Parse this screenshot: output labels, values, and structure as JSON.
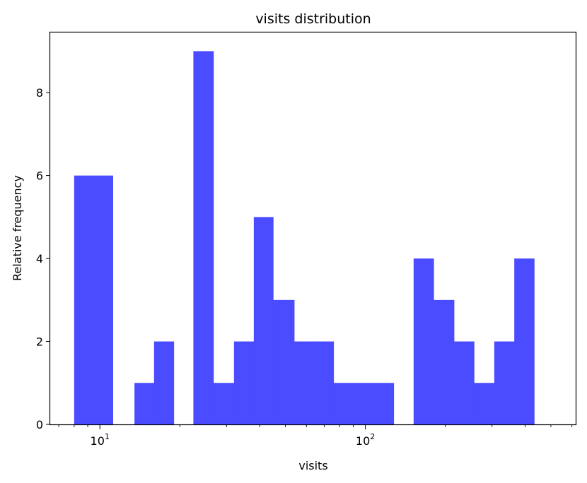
{
  "chart_data": {
    "type": "bar",
    "title": "visits distribution",
    "xlabel": "visits",
    "ylabel": "Relative frequency",
    "xscale": "log",
    "xlim": [
      6.5,
      620
    ],
    "ylim": [
      0,
      9.45
    ],
    "yticks": [
      0,
      2,
      4,
      6,
      8
    ],
    "xticks_major": [
      {
        "value": 10,
        "base": "10",
        "exp": "1"
      },
      {
        "value": 100,
        "base": "10",
        "exp": "2"
      }
    ],
    "bar_color": "#4b4bff",
    "grid": false,
    "legend": "none",
    "bins": [
      {
        "x0": 8.0,
        "x1": 9.4,
        "value": 6
      },
      {
        "x0": 9.4,
        "x1": 11.2,
        "value": 6
      },
      {
        "x0": 11.2,
        "x1": 13.5,
        "value": 0
      },
      {
        "x0": 13.5,
        "x1": 16.0,
        "value": 1
      },
      {
        "x0": 16.0,
        "x1": 19.0,
        "value": 2
      },
      {
        "x0": 19.0,
        "x1": 22.5,
        "value": 0
      },
      {
        "x0": 22.5,
        "x1": 26.8,
        "value": 9
      },
      {
        "x0": 26.8,
        "x1": 32.0,
        "value": 1
      },
      {
        "x0": 32.0,
        "x1": 38.0,
        "value": 2
      },
      {
        "x0": 38.0,
        "x1": 45.0,
        "value": 5
      },
      {
        "x0": 45.0,
        "x1": 54.0,
        "value": 3
      },
      {
        "x0": 54.0,
        "x1": 64.0,
        "value": 2
      },
      {
        "x0": 64.0,
        "x1": 76.0,
        "value": 2
      },
      {
        "x0": 76.0,
        "x1": 90.0,
        "value": 1
      },
      {
        "x0": 90.0,
        "x1": 107.0,
        "value": 1
      },
      {
        "x0": 107.0,
        "x1": 128.0,
        "value": 1
      },
      {
        "x0": 128.0,
        "x1": 152.0,
        "value": 0
      },
      {
        "x0": 152.0,
        "x1": 181.0,
        "value": 4
      },
      {
        "x0": 181.0,
        "x1": 216.0,
        "value": 3
      },
      {
        "x0": 216.0,
        "x1": 257.0,
        "value": 2
      },
      {
        "x0": 257.0,
        "x1": 306.0,
        "value": 1
      },
      {
        "x0": 306.0,
        "x1": 364.0,
        "value": 2
      },
      {
        "x0": 364.0,
        "x1": 433.0,
        "value": 4
      }
    ]
  }
}
